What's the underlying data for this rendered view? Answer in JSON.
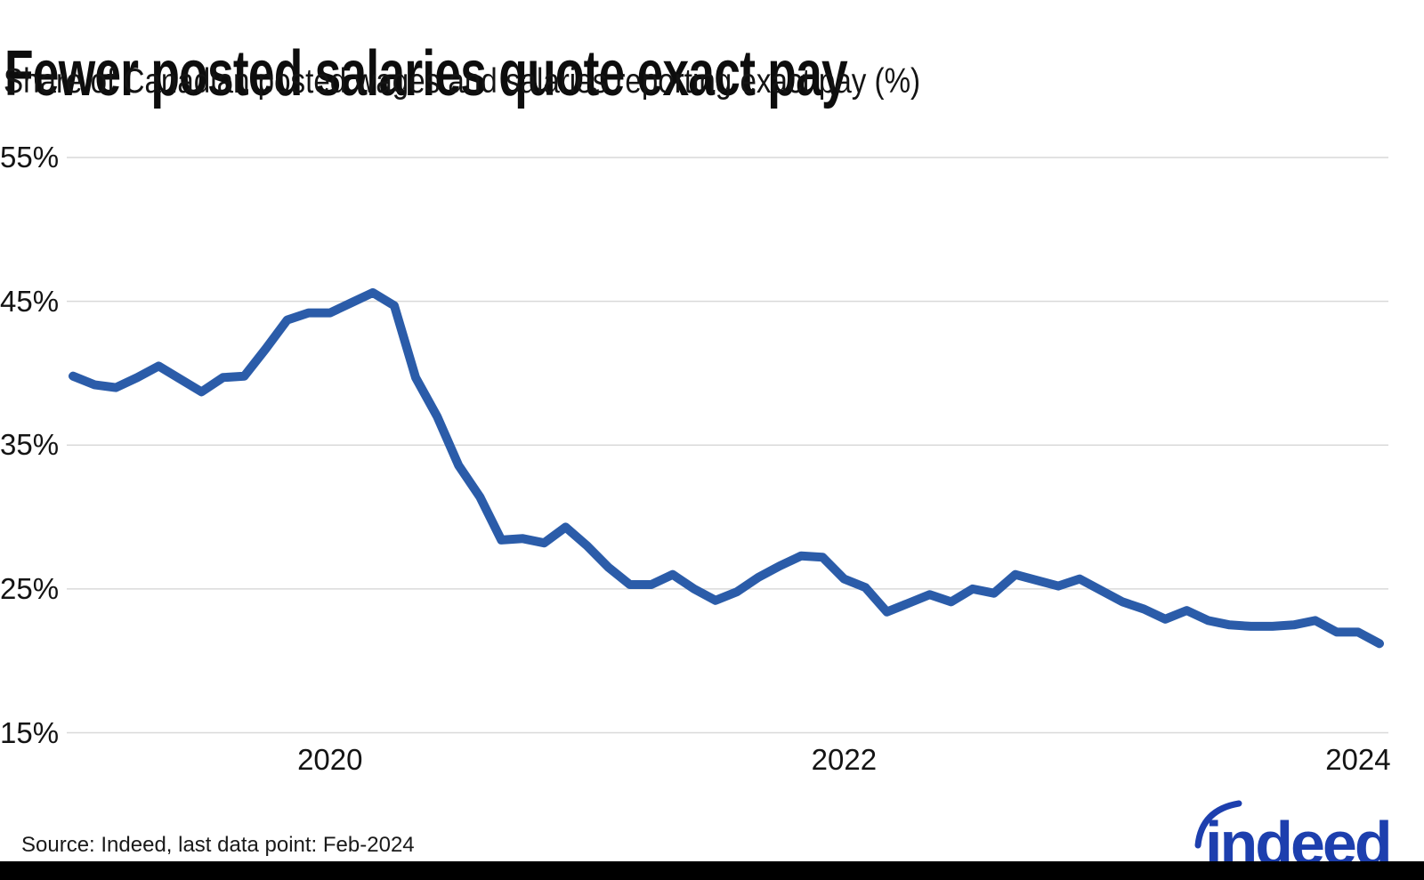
{
  "header": {
    "title": "Fewer posted salaries quote exact pay",
    "subtitle": "Share of Canadian posted wages and salaries reporting exact pay (%)"
  },
  "footer": {
    "source": "Source: Indeed, last data point: Feb-2024",
    "logo_text": "indeed"
  },
  "colors": {
    "line": "#2b5ca9",
    "grid": "#d9d9d9",
    "text": "#141414",
    "logo": "#1d3fae",
    "bottom_bar": "#000000",
    "background": "#ffffff"
  },
  "chart_data": {
    "type": "line",
    "title": "Fewer posted salaries quote exact pay",
    "subtitle": "Share of Canadian posted wages and salaries reporting exact pay (%)",
    "unit": "%",
    "frequency": "monthly",
    "grid": "horizontal-only",
    "legend": "none",
    "ylim": [
      15,
      55
    ],
    "yticks": [
      {
        "value": 55,
        "label": "55%"
      },
      {
        "value": 45,
        "label": "45%"
      },
      {
        "value": 35,
        "label": "35%"
      },
      {
        "value": 25,
        "label": "25%"
      },
      {
        "value": 15,
        "label": "15%"
      }
    ],
    "xticks": [
      {
        "label": "2020",
        "x_index": 12
      },
      {
        "label": "2022",
        "x_index": 36
      },
      {
        "label": "2024",
        "x_index": 60
      }
    ],
    "x": [
      "Jan-2019",
      "Feb-2019",
      "Mar-2019",
      "Apr-2019",
      "May-2019",
      "Jun-2019",
      "Jul-2019",
      "Aug-2019",
      "Sep-2019",
      "Oct-2019",
      "Nov-2019",
      "Dec-2019",
      "Jan-2020",
      "Feb-2020",
      "Mar-2020",
      "Apr-2020",
      "May-2020",
      "Jun-2020",
      "Jul-2020",
      "Aug-2020",
      "Sep-2020",
      "Oct-2020",
      "Nov-2020",
      "Dec-2020",
      "Jan-2021",
      "Feb-2021",
      "Mar-2021",
      "Apr-2021",
      "May-2021",
      "Jun-2021",
      "Jul-2021",
      "Aug-2021",
      "Sep-2021",
      "Oct-2021",
      "Nov-2021",
      "Dec-2021",
      "Jan-2022",
      "Feb-2022",
      "Mar-2022",
      "Apr-2022",
      "May-2022",
      "Jun-2022",
      "Jul-2022",
      "Aug-2022",
      "Sep-2022",
      "Oct-2022",
      "Nov-2022",
      "Dec-2022",
      "Jan-2023",
      "Feb-2023",
      "Mar-2023",
      "Apr-2023",
      "May-2023",
      "Jun-2023",
      "Jul-2023",
      "Aug-2023",
      "Sep-2023",
      "Oct-2023",
      "Nov-2023",
      "Dec-2023",
      "Jan-2024",
      "Feb-2024"
    ],
    "series": [
      {
        "name": "Share of Canadian posted wages and salaries reporting exact pay",
        "color": "#2b5ca9",
        "values": [
          39.8,
          39.2,
          39.0,
          39.7,
          40.5,
          39.6,
          38.7,
          39.7,
          39.8,
          41.7,
          43.7,
          44.2,
          44.2,
          44.9,
          45.6,
          44.7,
          39.7,
          37.0,
          33.6,
          31.4,
          28.4,
          28.5,
          28.2,
          29.3,
          28.0,
          26.5,
          25.3,
          25.3,
          26.0,
          25.0,
          24.2,
          24.8,
          25.8,
          26.6,
          27.3,
          27.2,
          25.7,
          25.1,
          23.4,
          24.0,
          24.6,
          24.1,
          25.0,
          24.7,
          26.0,
          25.6,
          25.2,
          25.7,
          24.9,
          24.1,
          23.6,
          22.9,
          23.5,
          22.8,
          22.5,
          22.4,
          22.4,
          22.5,
          22.8,
          22.0,
          22.0,
          21.2
        ]
      }
    ]
  }
}
